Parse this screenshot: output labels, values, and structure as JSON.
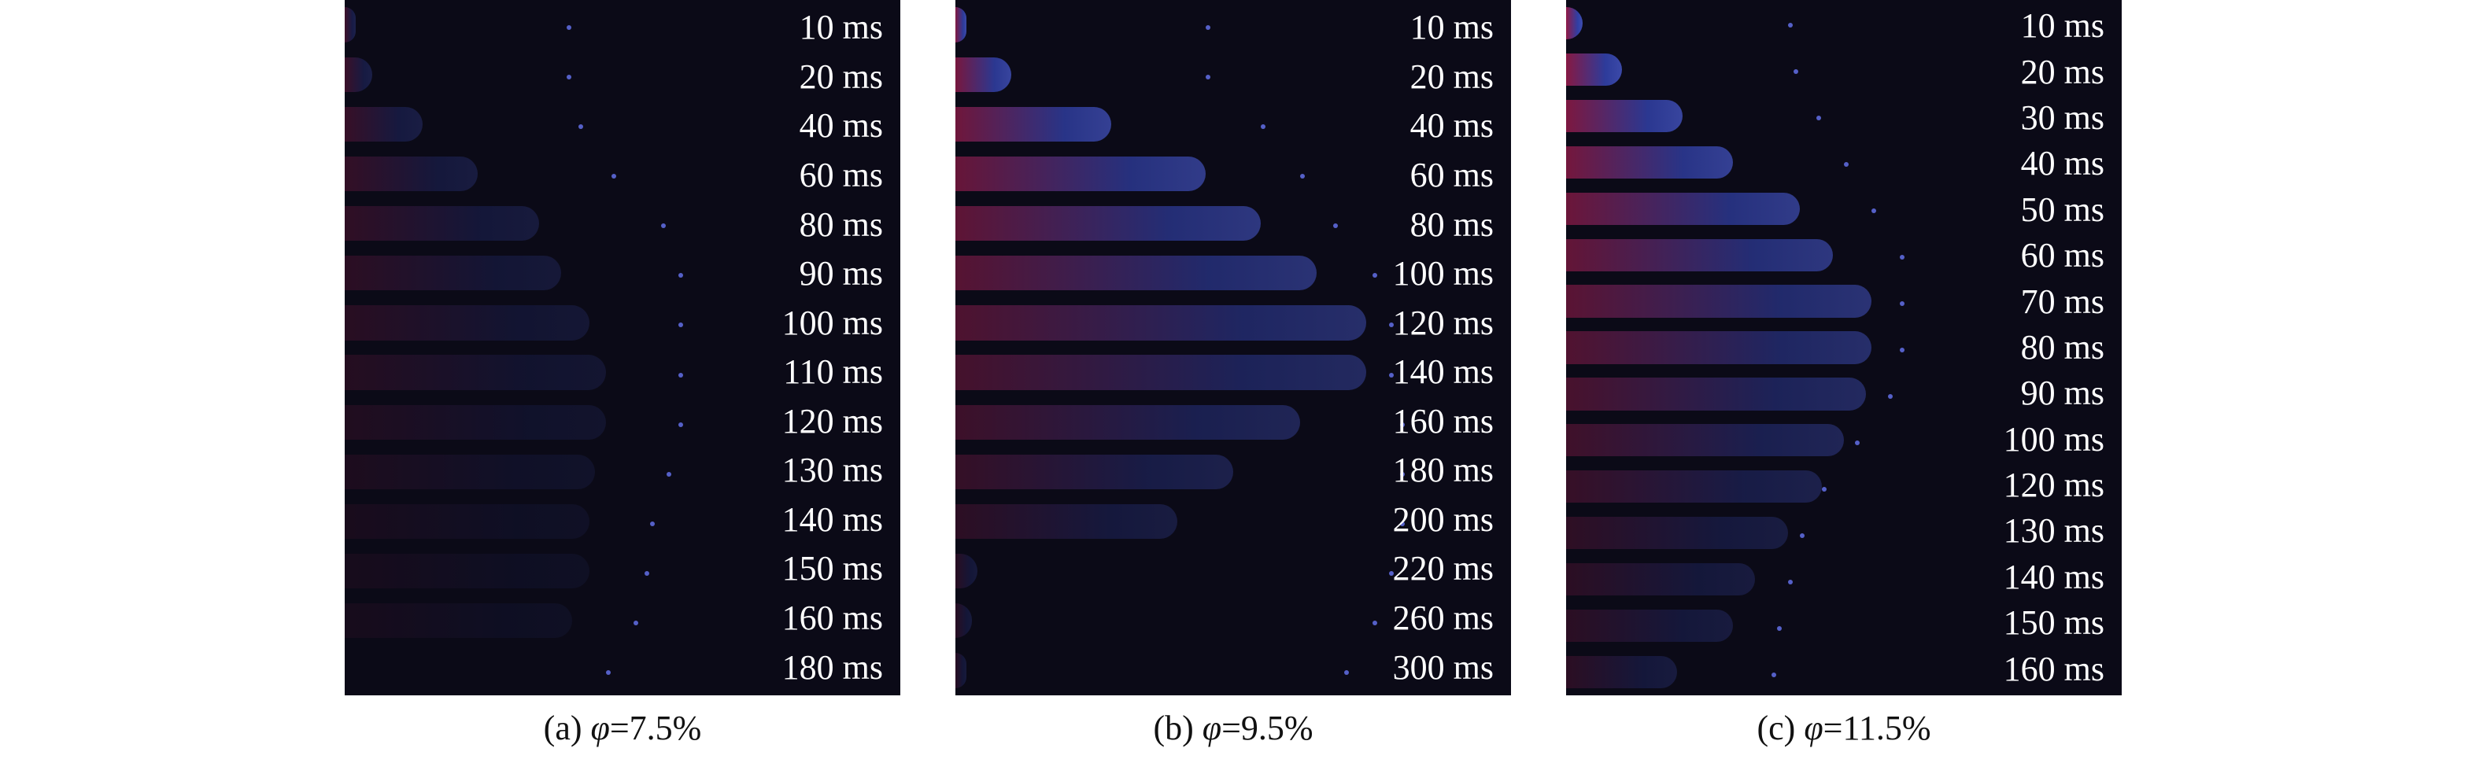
{
  "panels": [
    {
      "id": "a",
      "caption_prefix": "(a)",
      "caption_symbol": "φ",
      "caption_value": "=7.5%",
      "times": [
        "10 ms",
        "20 ms",
        "40 ms",
        "60 ms",
        "80 ms",
        "90 ms",
        "100 ms",
        "110 ms",
        "120 ms",
        "130 ms",
        "140 ms",
        "150 ms",
        "160 ms",
        "180 ms"
      ]
    },
    {
      "id": "b",
      "caption_prefix": "(b)",
      "caption_symbol": "φ",
      "caption_value": "=9.5%",
      "times": [
        "10 ms",
        "20 ms",
        "40 ms",
        "60 ms",
        "80 ms",
        "100 ms",
        "120 ms",
        "140 ms",
        "160 ms",
        "180 ms",
        "200 ms",
        "220 ms",
        "260 ms",
        "300 ms"
      ]
    },
    {
      "id": "c",
      "caption_prefix": "(c)",
      "caption_symbol": "φ",
      "caption_value": "=11.5%",
      "times": [
        "10 ms",
        "20 ms",
        "30 ms",
        "40 ms",
        "50 ms",
        "60 ms",
        "70 ms",
        "80 ms",
        "90 ms",
        "100 ms",
        "120 ms",
        "130 ms",
        "140 ms",
        "150 ms",
        "160 ms"
      ]
    }
  ],
  "colors": {
    "background": "#0b0a17",
    "flame_blue": "#3a4fd0",
    "flame_red": "#ff2a6a"
  }
}
